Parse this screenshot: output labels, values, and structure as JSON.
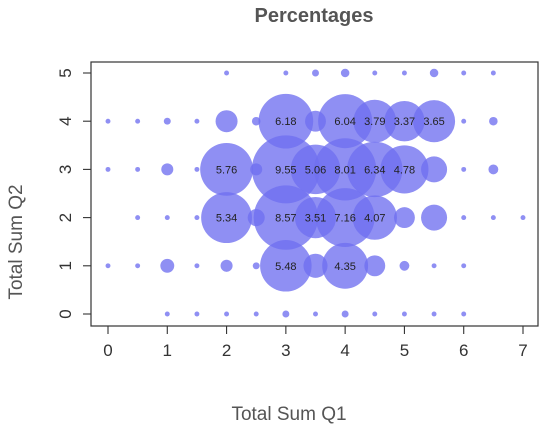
{
  "chart_data": {
    "type": "scatter",
    "title": "Percentages",
    "xlabel": "Total Sum Q1",
    "ylabel": "Total Sum Q2",
    "xlim": [
      0,
      7
    ],
    "ylim": [
      0,
      5
    ],
    "xticks": [
      "0",
      "1",
      "2",
      "3",
      "4",
      "5",
      "6",
      "7"
    ],
    "yticks": [
      "0",
      "1",
      "2",
      "3",
      "4",
      "5"
    ],
    "grid": false,
    "marker_color": "#6f6ff0",
    "points": [
      {
        "x": 1,
        "y": 0,
        "value": 0.05
      },
      {
        "x": 1.5,
        "y": 0,
        "value": 0.05
      },
      {
        "x": 2,
        "y": 0,
        "value": 0.05
      },
      {
        "x": 2.5,
        "y": 0,
        "value": 0.05
      },
      {
        "x": 3,
        "y": 0,
        "value": 0.1
      },
      {
        "x": 3.5,
        "y": 0,
        "value": 0.05
      },
      {
        "x": 4,
        "y": 0,
        "value": 0.1
      },
      {
        "x": 4.5,
        "y": 0,
        "value": 0.05
      },
      {
        "x": 5,
        "y": 0,
        "value": 0.05
      },
      {
        "x": 5.5,
        "y": 0,
        "value": 0.05
      },
      {
        "x": 6,
        "y": 0,
        "value": 0.05
      },
      {
        "x": 0,
        "y": 1,
        "value": 0.05
      },
      {
        "x": 0.5,
        "y": 1,
        "value": 0.05
      },
      {
        "x": 1,
        "y": 1,
        "value": 0.4
      },
      {
        "x": 1.5,
        "y": 1,
        "value": 0.05
      },
      {
        "x": 2,
        "y": 1,
        "value": 0.3
      },
      {
        "x": 2.5,
        "y": 1,
        "value": 0.1
      },
      {
        "x": 3,
        "y": 1,
        "value": 5.48,
        "label": "5.48"
      },
      {
        "x": 3.5,
        "y": 1,
        "value": 1.2
      },
      {
        "x": 4,
        "y": 1,
        "value": 4.35,
        "label": "4.35"
      },
      {
        "x": 4.5,
        "y": 1,
        "value": 0.9
      },
      {
        "x": 5,
        "y": 1,
        "value": 0.2
      },
      {
        "x": 5.5,
        "y": 1,
        "value": 0.05
      },
      {
        "x": 6,
        "y": 1,
        "value": 0.05
      },
      {
        "x": 0.5,
        "y": 2,
        "value": 0.05
      },
      {
        "x": 1,
        "y": 2,
        "value": 0.05
      },
      {
        "x": 1.5,
        "y": 2,
        "value": 0.05
      },
      {
        "x": 2,
        "y": 2,
        "value": 5.34,
        "label": "5.34"
      },
      {
        "x": 2.5,
        "y": 2,
        "value": 0.6
      },
      {
        "x": 3,
        "y": 2,
        "value": 8.57,
        "label": "8.57"
      },
      {
        "x": 3.5,
        "y": 2,
        "value": 3.51,
        "label": "3.51"
      },
      {
        "x": 4,
        "y": 2,
        "value": 7.16,
        "label": "7.16"
      },
      {
        "x": 4.5,
        "y": 2,
        "value": 4.07,
        "label": "4.07"
      },
      {
        "x": 5,
        "y": 2,
        "value": 0.9
      },
      {
        "x": 5.5,
        "y": 2,
        "value": 1.4
      },
      {
        "x": 6,
        "y": 2,
        "value": 0.05
      },
      {
        "x": 6.5,
        "y": 2,
        "value": 0.05
      },
      {
        "x": 7,
        "y": 2,
        "value": 0.05
      },
      {
        "x": 0,
        "y": 3,
        "value": 0.05
      },
      {
        "x": 0.5,
        "y": 3,
        "value": 0.05
      },
      {
        "x": 1,
        "y": 3,
        "value": 0.3
      },
      {
        "x": 1.5,
        "y": 3,
        "value": 0.05
      },
      {
        "x": 2,
        "y": 3,
        "value": 5.76,
        "label": "5.76"
      },
      {
        "x": 2.5,
        "y": 3,
        "value": 0.3
      },
      {
        "x": 3,
        "y": 3,
        "value": 9.55,
        "label": "9.55"
      },
      {
        "x": 3.5,
        "y": 3,
        "value": 5.06,
        "label": "5.06"
      },
      {
        "x": 4,
        "y": 3,
        "value": 8.01,
        "label": "8.01"
      },
      {
        "x": 4.5,
        "y": 3,
        "value": 6.34,
        "label": "6.34"
      },
      {
        "x": 5,
        "y": 3,
        "value": 4.78,
        "label": "4.78"
      },
      {
        "x": 5.5,
        "y": 3,
        "value": 1.4
      },
      {
        "x": 6,
        "y": 3,
        "value": 0.05
      },
      {
        "x": 6.5,
        "y": 3,
        "value": 0.2
      },
      {
        "x": 0,
        "y": 4,
        "value": 0.05
      },
      {
        "x": 0.5,
        "y": 4,
        "value": 0.05
      },
      {
        "x": 1,
        "y": 4,
        "value": 0.1
      },
      {
        "x": 1.5,
        "y": 4,
        "value": 0.05
      },
      {
        "x": 2,
        "y": 4,
        "value": 1.0
      },
      {
        "x": 2.5,
        "y": 4,
        "value": 0.15
      },
      {
        "x": 3,
        "y": 4,
        "value": 6.18,
        "label": "6.18"
      },
      {
        "x": 3.5,
        "y": 4,
        "value": 0.9
      },
      {
        "x": 4,
        "y": 4,
        "value": 6.04,
        "label": "6.04"
      },
      {
        "x": 4.5,
        "y": 4,
        "value": 3.79,
        "label": "3.79"
      },
      {
        "x": 5,
        "y": 4,
        "value": 3.37,
        "label": "3.37"
      },
      {
        "x": 5.5,
        "y": 4,
        "value": 3.65,
        "label": "3.65"
      },
      {
        "x": 6,
        "y": 4,
        "value": 0.05
      },
      {
        "x": 6.5,
        "y": 4,
        "value": 0.15
      },
      {
        "x": 2,
        "y": 5,
        "value": 0.05
      },
      {
        "x": 3,
        "y": 5,
        "value": 0.05
      },
      {
        "x": 3.5,
        "y": 5,
        "value": 0.1
      },
      {
        "x": 4,
        "y": 5,
        "value": 0.15
      },
      {
        "x": 4.5,
        "y": 5,
        "value": 0.05
      },
      {
        "x": 5,
        "y": 5,
        "value": 0.05
      },
      {
        "x": 5.5,
        "y": 5,
        "value": 0.15
      },
      {
        "x": 6,
        "y": 5,
        "value": 0.05
      },
      {
        "x": 6.5,
        "y": 5,
        "value": 0.05
      }
    ]
  }
}
